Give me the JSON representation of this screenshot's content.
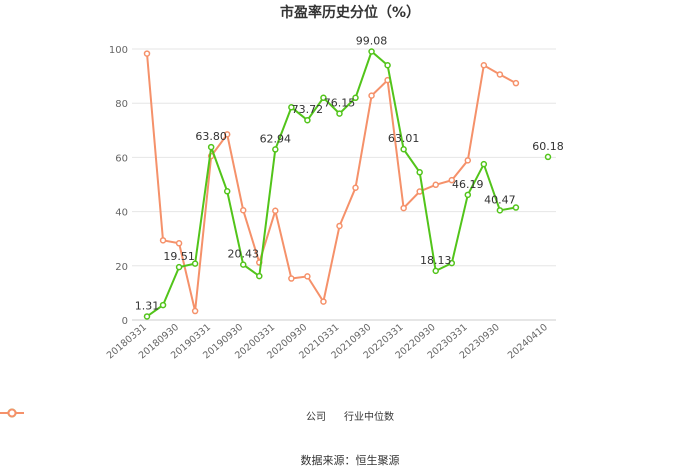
{
  "chart_data": {
    "type": "line",
    "title": "市盈率历史分位（%）",
    "ylim": [
      0,
      100
    ],
    "yticks": [
      0,
      20,
      40,
      60,
      80,
      100
    ],
    "x": [
      "20180331",
      "20180630",
      "20180930",
      "20181231",
      "20190331",
      "20190630",
      "20190930",
      "20191231",
      "20200331",
      "20200630",
      "20200930",
      "20201231",
      "20210331",
      "20210630",
      "20210930",
      "20211231",
      "20220331",
      "20220630",
      "20220930",
      "20221231",
      "20230331",
      "20230630",
      "20230930",
      "20231231",
      "20240331",
      "20240410"
    ],
    "x_tick_labels_shown": [
      "20180331",
      "20180930",
      "20190331",
      "20190930",
      "20200331",
      "20200930",
      "20210331",
      "20210930",
      "20220331",
      "20220930",
      "20230331",
      "20230930",
      "20240410"
    ],
    "series": [
      {
        "name": "公司",
        "color": "#52c41a",
        "values": [
          1.31,
          5.5,
          19.51,
          20.8,
          63.8,
          47.5,
          20.43,
          16.2,
          62.94,
          78.5,
          73.72,
          82.0,
          76.15,
          82.0,
          99.08,
          94.0,
          63.01,
          54.5,
          18.13,
          21.0,
          46.19,
          57.5,
          40.47,
          41.5,
          null,
          60.18
        ],
        "labels": {
          "0": "1.31",
          "2": "19.51",
          "4": "63.80",
          "6": "20.43",
          "8": "62.94",
          "10": "73.72",
          "12": "76.15",
          "14": "99.08",
          "16": "63.01",
          "18": "18.13",
          "20": "46.19",
          "22": "40.47",
          "25": "60.18"
        }
      },
      {
        "name": "行业中位数",
        "color": "#f5916a",
        "values": [
          98.3,
          29.4,
          28.3,
          3.3,
          60.5,
          68.5,
          40.5,
          21.2,
          40.3,
          15.3,
          16.1,
          6.8,
          34.7,
          48.8,
          82.8,
          88.5,
          41.3,
          47.4,
          49.9,
          51.6,
          58.9,
          94.0,
          90.6,
          87.4,
          null,
          null
        ]
      }
    ],
    "legend_position": "bottom",
    "grid": true
  },
  "source_text": "数据来源：恒生聚源"
}
